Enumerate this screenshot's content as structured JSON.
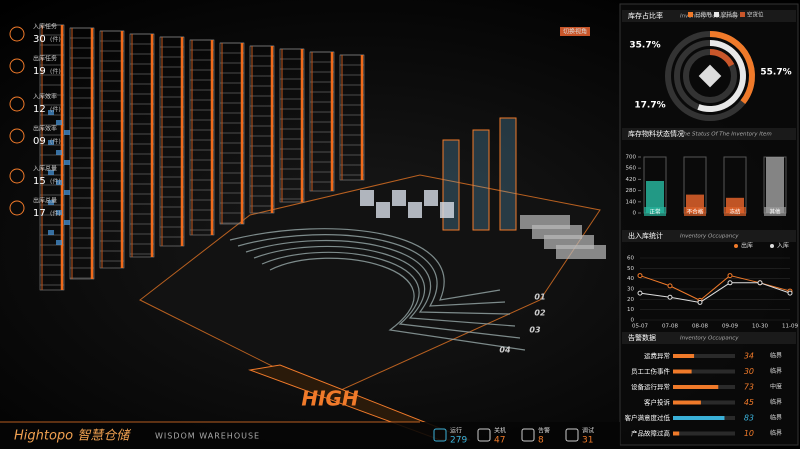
{
  "header": {
    "switch_button": "切换视角"
  },
  "left_stats": [
    {
      "label": "入库任务",
      "value": "30",
      "unit": "(件)"
    },
    {
      "label": "出库任务",
      "value": "19",
      "unit": "(件)"
    },
    {
      "label": "入库效率",
      "value": "12",
      "unit": "(件)"
    },
    {
      "label": "出库效率",
      "value": "09",
      "unit": "(件)"
    },
    {
      "label": "入库总量",
      "value": "15",
      "unit": "(件)"
    },
    {
      "label": "出库总量",
      "value": "17",
      "unit": "(件)"
    }
  ],
  "scene_labels": [
    "HIGH",
    "01",
    "02",
    "03",
    "04"
  ],
  "brand": {
    "name": "Hightopo 智慧仓储",
    "subtitle": "WISDOM WAREHOUSE"
  },
  "bottom_stats": [
    {
      "label": "运行",
      "value": 279
    },
    {
      "label": "关机",
      "value": 47
    },
    {
      "label": "告警",
      "value": 8
    },
    {
      "label": "调试",
      "value": 31
    }
  ],
  "occupancy": {
    "type": "donut",
    "title": "库存占比率",
    "subtitle": "Inventory Occupancy",
    "categories": [
      "已使用",
      "空托盘",
      "空货位"
    ],
    "values": [
      35.7,
      55.7,
      17.7
    ],
    "value_labels": [
      "35.7%",
      "55.7%",
      "17.7%"
    ],
    "colors": [
      "#f07a2a",
      "#e8e8e8",
      "#c9562a"
    ]
  },
  "inventory_status": {
    "type": "bar",
    "title": "库存物料状态情况",
    "subtitle": "The Status Of The Inventory Item",
    "categories": [
      "正常",
      "不合格",
      "冻结",
      "其他"
    ],
    "values": [
      400,
      230,
      190,
      700
    ],
    "colors": [
      "#27b39b",
      "#e0622a",
      "#e0622a",
      "#9a9a9a"
    ],
    "ylim": [
      0,
      700
    ],
    "yticks": [
      0,
      140,
      280,
      420,
      560,
      700
    ]
  },
  "io_stats": {
    "type": "line",
    "title": "出入库统计",
    "subtitle": "Inventory Occupancy",
    "categories": [
      "05-07",
      "07-08",
      "08-08",
      "09-09",
      "10-30",
      "11-09"
    ],
    "series": [
      {
        "name": "出库",
        "color": "#f07a2a",
        "values": [
          43,
          33,
          19,
          43,
          36,
          28
        ]
      },
      {
        "name": "入库",
        "color": "#dddddd",
        "values": [
          26,
          22,
          17,
          36,
          36,
          26
        ]
      }
    ],
    "ylim": [
      0,
      60
    ],
    "yticks": [
      0,
      10,
      20,
      30,
      40,
      50,
      60
    ],
    "grid": true
  },
  "alerts": {
    "title": "告警数据",
    "subtitle": "Inventory Occupancy",
    "xlim": [
      0,
      100
    ],
    "rows": [
      {
        "label": "运费异常",
        "value": 34,
        "level": "临界"
      },
      {
        "label": "员工工伤事件",
        "value": 30,
        "level": "临界"
      },
      {
        "label": "设备运行异常",
        "value": 73,
        "level": "中度"
      },
      {
        "label": "客户投诉",
        "value": 45,
        "level": "临界"
      },
      {
        "label": "客户满意度过低",
        "value": 83,
        "level": "临界"
      },
      {
        "label": "产品故障过高",
        "value": 10,
        "level": "临界"
      }
    ]
  }
}
